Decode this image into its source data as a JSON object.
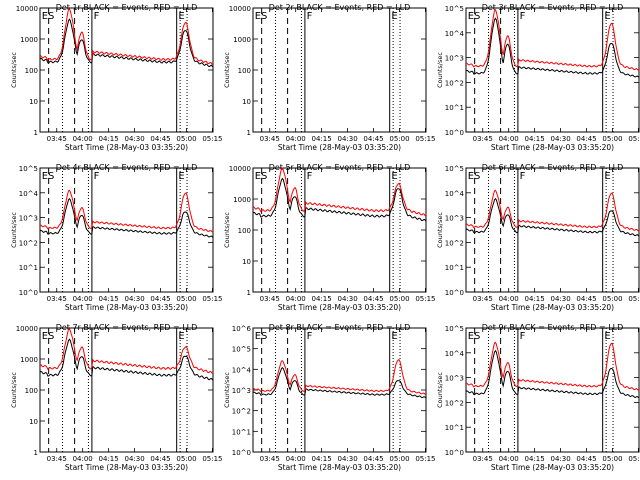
{
  "chart_data": [
    {
      "id": "det1",
      "type": "line",
      "title": "Det 1r BLACK = Events, RED = LLD",
      "xlabel": "Start Time (28-May-03 03:35:20)",
      "ylabel": "Counts/sec",
      "yscale": "log",
      "ylim": [
        1,
        10000
      ],
      "yticks": [
        "1",
        "10",
        "100",
        "1000",
        "10000"
      ],
      "has_data": true,
      "corner_labels": [
        "ES",
        "F",
        "E"
      ],
      "peak_red": 9000,
      "flat_red": 220,
      "flat_black": 180,
      "late_peak_red": 3500,
      "late_peak_black": 2000,
      "dip_low": 3
    },
    {
      "id": "det2",
      "type": "line",
      "title": "Det 2r BLACK = Events, RED = LLD",
      "xlabel": "Start Time (28-May-03 03:35:20)",
      "ylabel": "Counts/sec",
      "yscale": "log",
      "ylim": [
        1,
        10000
      ],
      "yticks": [
        "1",
        "10",
        "100",
        "1000",
        "10000"
      ],
      "has_data": false,
      "corner_labels": [
        "ES",
        "F",
        "E"
      ]
    },
    {
      "id": "det3",
      "type": "line",
      "title": "Det 3r BLACK = Events, RED = LLD",
      "xlabel": "Start Time (28-May-03 03:35:20)",
      "ylabel": "Counts/sec",
      "yscale": "log",
      "ylim": [
        1,
        100000
      ],
      "yticks": [
        "10^0",
        "10^1",
        "10^2",
        "10^3",
        "10^4",
        "10^5"
      ],
      "has_data": true,
      "corner_labels": [
        "ES",
        "F",
        "E"
      ],
      "peak_red": 80000,
      "flat_red": 450,
      "flat_black": 230,
      "late_peak_red": 25000,
      "late_peak_black": 4000,
      "dip_low": 15
    },
    {
      "id": "det4",
      "type": "line",
      "title": "Det 4r BLACK = Events, RED = LLD",
      "xlabel": "Start Time (28-May-03 03:35:20)",
      "ylabel": "Counts/sec",
      "yscale": "log",
      "ylim": [
        1,
        100000
      ],
      "yticks": [
        "10^0",
        "10^1",
        "10^2",
        "10^3",
        "10^4",
        "10^5"
      ],
      "has_data": true,
      "corner_labels": [
        "ES",
        "F",
        "E"
      ],
      "peak_red": 12000,
      "flat_red": 380,
      "flat_black": 230,
      "late_peak_red": 10000,
      "late_peak_black": 1800,
      "dip_low": 20
    },
    {
      "id": "det5",
      "type": "line",
      "title": "Det 5r BLACK = Events, RED = LLD",
      "xlabel": "Start Time (28-May-03 03:35:20)",
      "ylabel": "Counts/sec",
      "yscale": "log",
      "ylim": [
        1,
        10000
      ],
      "yticks": [
        "1",
        "10",
        "100",
        "1000",
        "10000"
      ],
      "has_data": true,
      "corner_labels": [
        "ES",
        "F",
        "E"
      ],
      "peak_red": 9500,
      "flat_red": 420,
      "flat_black": 280,
      "late_peak_red": 3200,
      "late_peak_black": 2300,
      "dip_low": 4
    },
    {
      "id": "det6",
      "type": "line",
      "title": "Det 6r BLACK = Events, RED = LLD",
      "xlabel": "Start Time (28-May-03 03:35:20)",
      "ylabel": "Counts/sec",
      "yscale": "log",
      "ylim": [
        1,
        100000
      ],
      "yticks": [
        "10^0",
        "10^1",
        "10^2",
        "10^3",
        "10^4",
        "10^5"
      ],
      "has_data": true,
      "corner_labels": [
        "ES",
        "F",
        "E"
      ],
      "peak_red": 12000,
      "flat_red": 420,
      "flat_black": 260,
      "late_peak_red": 10000,
      "late_peak_black": 2000,
      "dip_low": 15
    },
    {
      "id": "det7",
      "type": "line",
      "title": "Det 7r BLACK = Events, RED = LLD",
      "xlabel": "Start Time (28-May-03 03:35:20)",
      "ylabel": "Counts/sec",
      "yscale": "log",
      "ylim": [
        1,
        10000
      ],
      "yticks": [
        "1",
        "10",
        "100",
        "1000",
        "10000"
      ],
      "has_data": true,
      "corner_labels": [
        "ES",
        "F",
        "E"
      ],
      "peak_red": 9000,
      "flat_red": 500,
      "flat_black": 300,
      "late_peak_red": 2500,
      "late_peak_black": 1300,
      "dip_low": 3
    },
    {
      "id": "det8",
      "type": "line",
      "title": "Det 8r BLACK = Events, RED = LLD",
      "xlabel": "Start Time (28-May-03 03:35:20)",
      "ylabel": "Counts/sec",
      "yscale": "log",
      "ylim": [
        1,
        1000000
      ],
      "yticks": [
        "10^0",
        "10^1",
        "10^2",
        "10^3",
        "10^4",
        "10^5",
        "10^6"
      ],
      "has_data": true,
      "corner_labels": [
        "ES",
        "F",
        "E"
      ],
      "peak_red": 25000,
      "flat_red": 900,
      "flat_black": 600,
      "late_peak_red": 30000,
      "late_peak_black": 3000,
      "dip_low": 20
    },
    {
      "id": "det9",
      "type": "line",
      "title": "Det 9r BLACK = Events, RED = LLD",
      "xlabel": "Start Time (28-May-03 03:35:20)",
      "ylabel": "Counts/sec",
      "yscale": "log",
      "ylim": [
        1,
        100000
      ],
      "yticks": [
        "10^0",
        "10^1",
        "10^2",
        "10^3",
        "10^4",
        "10^5"
      ],
      "has_data": true,
      "corner_labels": [
        "ES",
        "F",
        "E"
      ],
      "peak_red": 25000,
      "flat_red": 450,
      "flat_black": 220,
      "late_peak_red": 25000,
      "late_peak_black": 2500,
      "dip_low": 12
    }
  ],
  "x_axis": {
    "range_minutes": [
      0,
      100
    ],
    "tick_labels": [
      "03:45",
      "04:00",
      "04:15",
      "04:30",
      "04:45",
      "05:00",
      "05:15"
    ],
    "tick_minutes": [
      9.67,
      24.67,
      39.67,
      54.67,
      69.67,
      84.67,
      99.67
    ]
  },
  "event_markers": {
    "dashed": [
      5,
      20
    ],
    "dotted": [
      13,
      28
    ],
    "solid": [
      30,
      79
    ],
    "dotted2": [
      81,
      85
    ]
  },
  "colors": {
    "events": "#000000",
    "lld": "#ff0000"
  }
}
